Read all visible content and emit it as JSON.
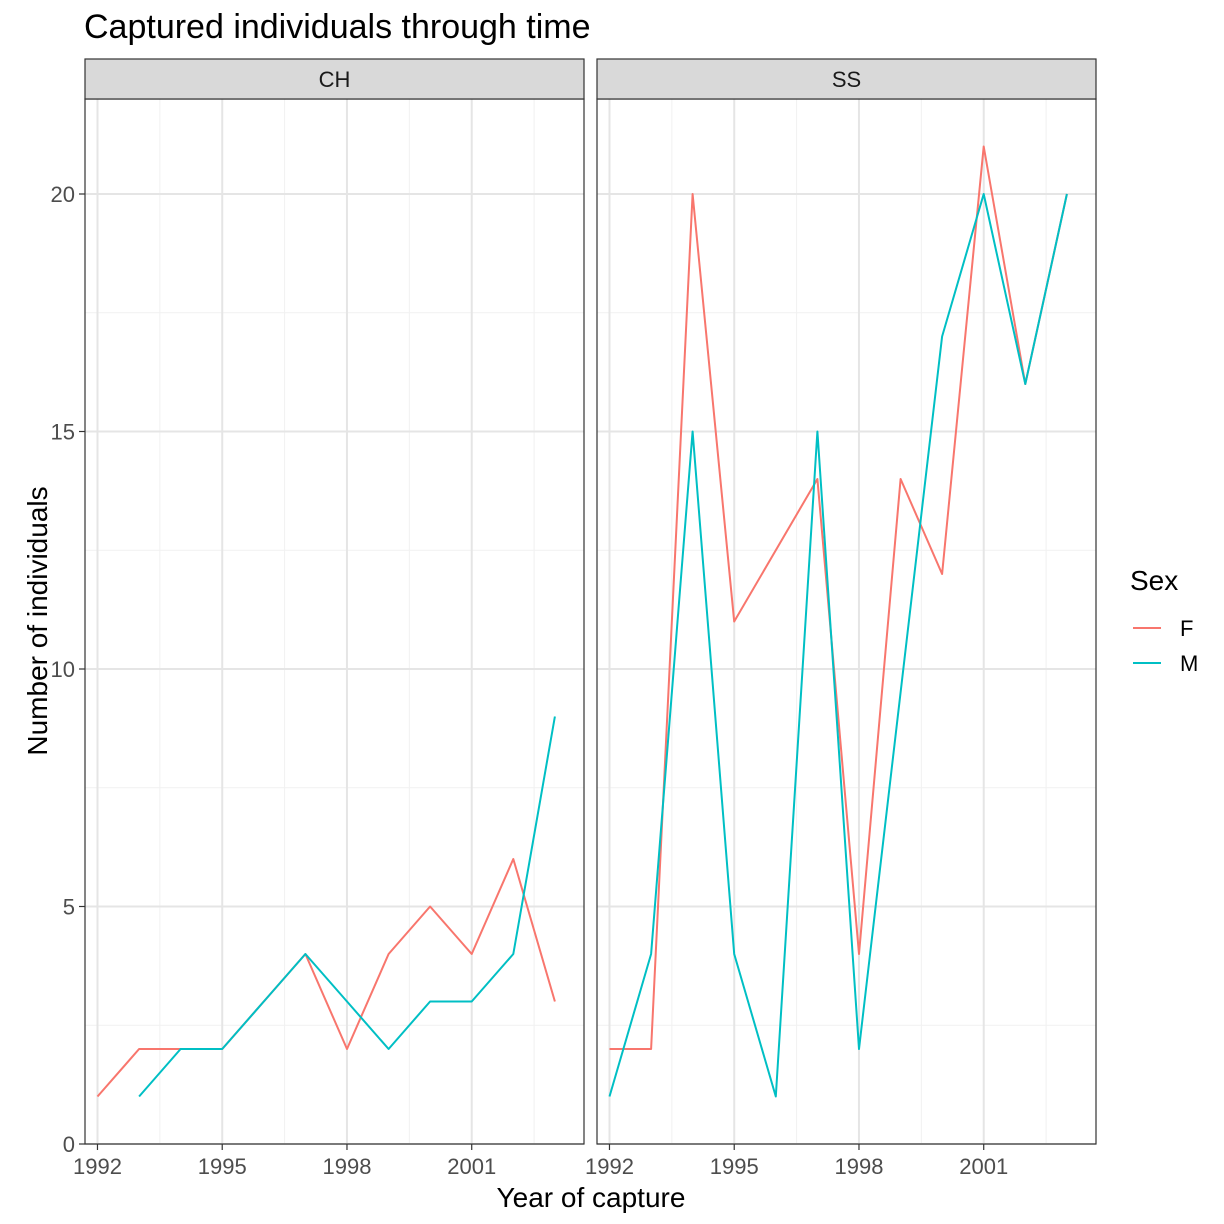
{
  "chart_data": {
    "type": "line",
    "title": "Captured individuals through time",
    "xlabel": "Year of capture",
    "ylabel": "Number of individuals",
    "xlim": [
      1991.7,
      2003.7
    ],
    "ylim": [
      0,
      22
    ],
    "x_ticks": [
      1992,
      1995,
      1998,
      2001
    ],
    "y_ticks": [
      0,
      5,
      10,
      15,
      20
    ],
    "grid": true,
    "legend": {
      "title": "Sex",
      "position": "right",
      "entries": [
        {
          "name": "F",
          "color": "#F8766D"
        },
        {
          "name": "M",
          "color": "#00BFC4"
        }
      ]
    },
    "panels": [
      {
        "label": "CH",
        "series": [
          {
            "name": "F",
            "x": [
              1992,
              1993,
              1994,
              1995,
              1996,
              1997,
              1998,
              1999,
              2000,
              2001,
              2002,
              2003
            ],
            "values": [
              1,
              2,
              2,
              2,
              3,
              4,
              2,
              4,
              5,
              4,
              6,
              3
            ]
          },
          {
            "name": "M",
            "x": [
              1993,
              1994,
              1995,
              1996,
              1997,
              1998,
              1999,
              2000,
              2001,
              2002,
              2003
            ],
            "values": [
              1,
              2,
              2,
              3,
              4,
              3,
              2,
              3,
              3,
              4,
              9
            ]
          }
        ]
      },
      {
        "label": "SS",
        "series": [
          {
            "name": "F",
            "x": [
              1992,
              1993,
              1994,
              1995,
              1997,
              1998,
              1999,
              2000,
              2001,
              2002,
              2003
            ],
            "values": [
              2,
              2,
              20,
              11,
              14,
              4,
              14,
              12,
              21,
              16,
              20
            ]
          },
          {
            "name": "M",
            "x": [
              1992,
              1993,
              1994,
              1995,
              1996,
              1997,
              1998,
              2000,
              2001,
              2002,
              2003
            ],
            "values": [
              1,
              4,
              15,
              4,
              1,
              15,
              2,
              17,
              20,
              16,
              20
            ]
          }
        ]
      }
    ]
  }
}
